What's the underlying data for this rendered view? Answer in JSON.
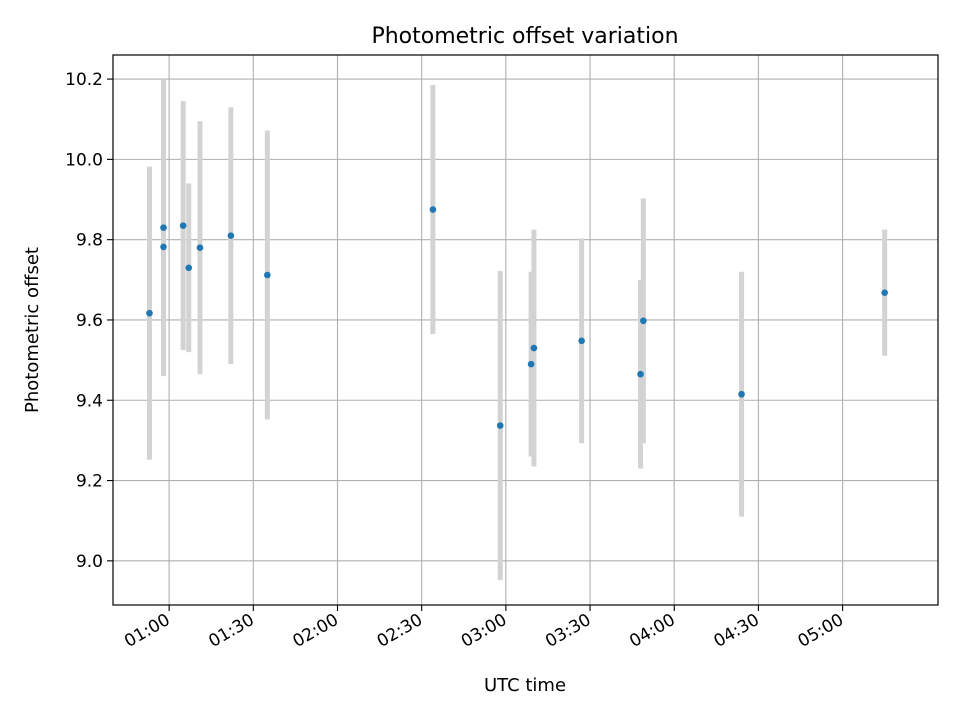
{
  "chart_data": {
    "type": "scatter",
    "title": "Photometric offset variation",
    "xlabel": "UTC time",
    "ylabel": "Photometric offset",
    "xlim": [
      "00:40",
      "05:34"
    ],
    "ylim": [
      8.89,
      10.26
    ],
    "grid": true,
    "x_ticks": [
      "01:00",
      "01:30",
      "02:00",
      "02:30",
      "03:00",
      "03:30",
      "04:00",
      "04:30",
      "05:00"
    ],
    "y_ticks": [
      "9.0",
      "9.2",
      "9.4",
      "9.6",
      "9.8",
      "10.0",
      "10.2"
    ],
    "series": [
      {
        "marker_color": "#1f77b4",
        "errorbar_color": "#d3d3d3",
        "points": [
          {
            "x": "00:53",
            "y": 9.617,
            "err": 0.365
          },
          {
            "x": "00:58",
            "y": 9.83,
            "err": 0.37
          },
          {
            "x": "00:58",
            "y": 9.782,
            "err": 0.32
          },
          {
            "x": "01:05",
            "y": 9.835,
            "err": 0.31
          },
          {
            "x": "01:07",
            "y": 9.73,
            "err": 0.21
          },
          {
            "x": "01:11",
            "y": 9.78,
            "err": 0.315
          },
          {
            "x": "01:22",
            "y": 9.81,
            "err": 0.32
          },
          {
            "x": "01:35",
            "y": 9.712,
            "err": 0.36
          },
          {
            "x": "02:34",
            "y": 9.875,
            "err": 0.31
          },
          {
            "x": "02:58",
            "y": 9.337,
            "err": 0.385
          },
          {
            "x": "03:09",
            "y": 9.49,
            "err": 0.23
          },
          {
            "x": "03:10",
            "y": 9.53,
            "err": 0.295
          },
          {
            "x": "03:27",
            "y": 9.548,
            "err": 0.255
          },
          {
            "x": "03:48",
            "y": 9.465,
            "err": 0.235
          },
          {
            "x": "03:49",
            "y": 9.598,
            "err": 0.305
          },
          {
            "x": "04:24",
            "y": 9.415,
            "err": 0.305
          },
          {
            "x": "05:15",
            "y": 9.668,
            "err": 0.157
          }
        ]
      }
    ]
  }
}
